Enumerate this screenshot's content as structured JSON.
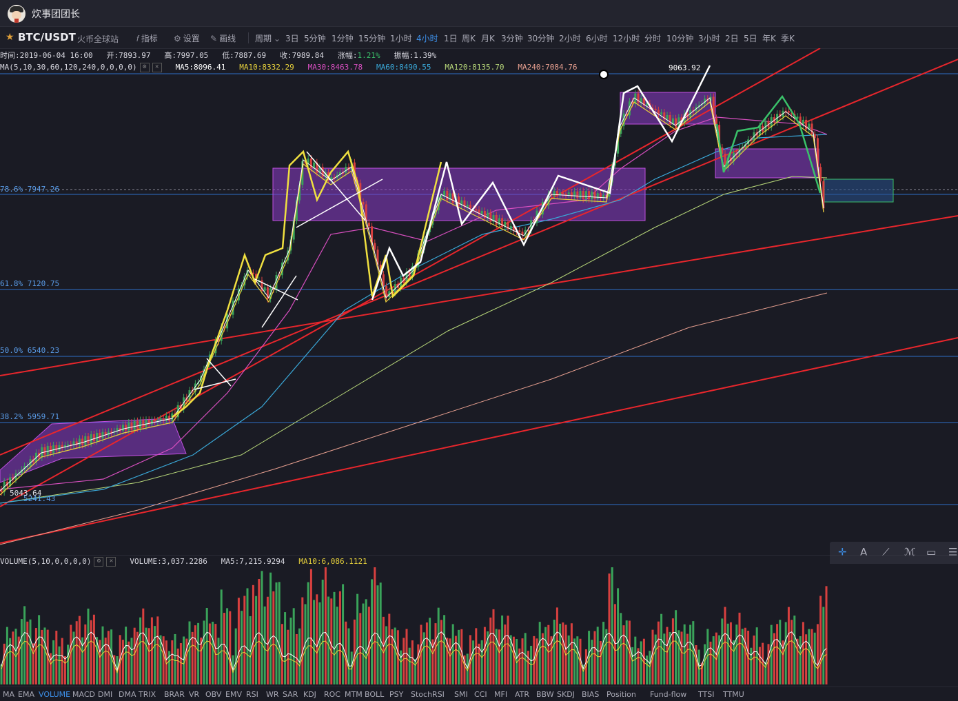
{
  "app": {
    "title": "炊事团团长"
  },
  "toolbar": {
    "pair": "BTC/USDT",
    "exchange": "火币全球站",
    "indicator_label": "指标",
    "settings_label": "设置",
    "draw_label": "画线",
    "period_label": "周期",
    "periods": [
      "3日",
      "5分钟",
      "1分钟",
      "15分钟",
      "1小时",
      "4小时",
      "1日",
      "周K",
      "月K",
      "3分钟",
      "30分钟",
      "2小时",
      "6小时",
      "12小时",
      "分时",
      "10分钟",
      "3小时",
      "2日",
      "5日",
      "年K",
      "季K"
    ],
    "active_period": "4小时"
  },
  "ohlc": {
    "time": "时间:2019-06-04 16:00",
    "open": "开:7893.97",
    "high": "高:7997.05",
    "low": "低:7887.69",
    "close": "收:7989.84",
    "change_label": "涨幅:",
    "change_value": "1.21%",
    "amplitude": "振幅:1.39%"
  },
  "ma_legend": {
    "params": "MA(5,10,30,60,120,240,0,0,0,0)",
    "ma5": "MA5:8096.41",
    "ma10": "MA10:8332.29",
    "ma30": "MA30:8463.78",
    "ma60": "MA60:8490.55",
    "ma120": "MA120:8135.70",
    "ma240": "MA240:7084.76"
  },
  "fib_levels": [
    {
      "label": "78.6% 7947.26"
    },
    {
      "label": "61.8% 7120.75"
    },
    {
      "label": "50.0% 6540.23"
    },
    {
      "label": "38.2% 5959.71"
    },
    {
      "label": "5241.43"
    }
  ],
  "price_labels": {
    "high": "9063.92",
    "low": "5043.64"
  },
  "volume_legend": {
    "params": "VOLUME(5,10,0,0,0,0)",
    "volume": "VOLUME:3,037.2286",
    "ma5": "MA5:7,215.9294",
    "ma10": "MA10:6,086.1121"
  },
  "indicators": [
    "MA",
    "EMA",
    "VOLUME",
    "MACD",
    "DMI",
    "DMA",
    "TRIX",
    "BRAR",
    "VR",
    "OBV",
    "EMV",
    "RSI",
    "WR",
    "SAR",
    "KDJ",
    "ROC",
    "MTM",
    "BOLL",
    "PSY",
    "StochRSI",
    "SMI",
    "CCI",
    "MFI",
    "ATR",
    "BBW",
    "SKDJ",
    "BIAS",
    "Position",
    "Fund-flow",
    "TTSI",
    "TTMU"
  ],
  "active_indicator": "VOLUME",
  "draw_tools": [
    "crosshair-icon",
    "text-icon",
    "line-icon",
    "pen-icon",
    "rect-icon",
    "menu-icon"
  ],
  "colors": {
    "up": "#3aa35a",
    "down": "#d8403f",
    "accent": "#3d8fe8",
    "ma5": "#ffffff",
    "ma10": "#e8d23c",
    "ma30": "#d84fc0",
    "ma60": "#3aa8d8",
    "ma120": "#b8d87a",
    "ma240": "#e8a090"
  }
}
